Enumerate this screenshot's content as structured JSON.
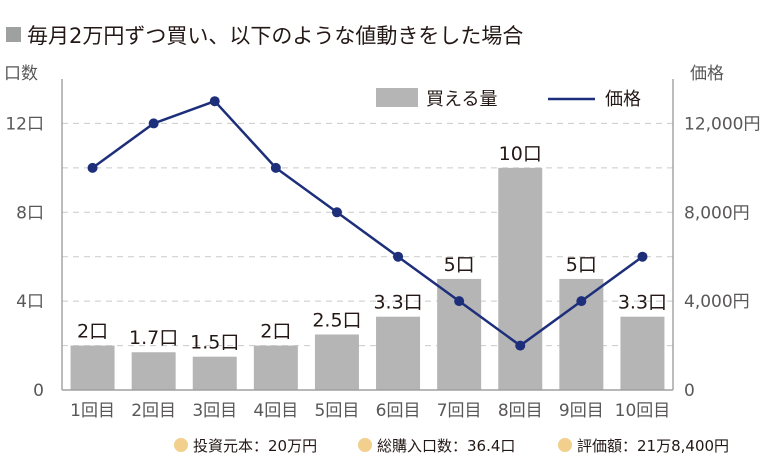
{
  "colors": {
    "bar": "#b5b5b6",
    "line": "#1d2f7a",
    "marker": "#1d2f7a",
    "title_square": "#9fa0a0",
    "footer_dot": "#f2cf8c"
  },
  "chart_data": {
    "type": "bar+line",
    "title": "毎月2万円ずつ買い、以下のような値動きをした場合",
    "left_axis_label": "口数",
    "right_axis_label": "価格",
    "categories": [
      "1回目",
      "2回目",
      "3回目",
      "4回目",
      "5回目",
      "6回目",
      "7回目",
      "8回目",
      "9回目",
      "10回目"
    ],
    "series": [
      {
        "name": "買える量",
        "type": "bar",
        "axis": "left",
        "values": [
          2,
          1.7,
          1.5,
          2,
          2.5,
          3.3,
          5,
          10,
          5,
          3.3
        ],
        "labels": [
          "2口",
          "1.7口",
          "1.5口",
          "2口",
          "2.5口",
          "3.3口",
          "5口",
          "10口",
          "5口",
          "3.3口"
        ]
      },
      {
        "name": "価格",
        "type": "line",
        "axis": "right",
        "values": [
          10000,
          12000,
          13000,
          10000,
          8000,
          6000,
          4000,
          2000,
          4000,
          6000
        ]
      }
    ],
    "left_axis": {
      "min": 0,
      "max": 14,
      "ticks": [
        0,
        4,
        8,
        12
      ],
      "tick_labels": [
        "0",
        "4口",
        "8口",
        "12口"
      ]
    },
    "right_axis": {
      "min": 0,
      "max": 14000,
      "ticks": [
        0,
        4000,
        8000,
        12000
      ],
      "tick_labels": [
        "0",
        "4,000円",
        "8,000円",
        "12,000円"
      ]
    },
    "grid": true,
    "legend_position": "top-right"
  },
  "footer": {
    "items": [
      "投資元本：20万円",
      "総購入口数：36.4口",
      "評価額：21万8,400円"
    ]
  }
}
